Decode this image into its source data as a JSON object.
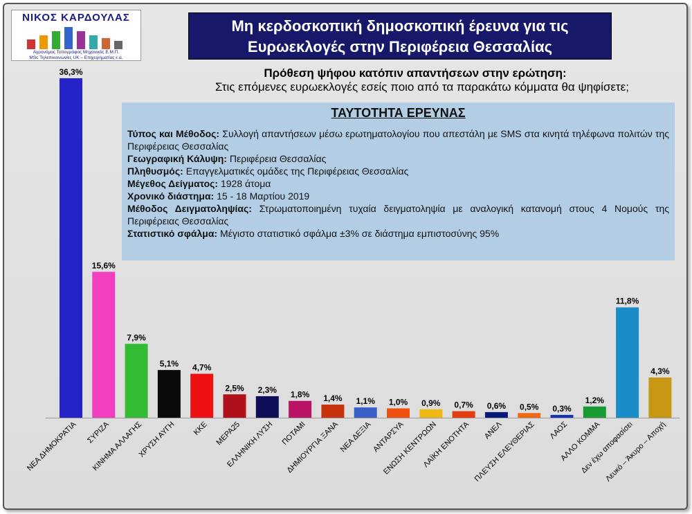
{
  "logo": {
    "name": "ΝΙΚΟΣ ΚΑΡΔΟΥΛΑΣ",
    "line1": "Αγρονόμος Τοπογράφος Μηχανικός Ε.Μ.Π.",
    "line2": "MSc Τηλεπικοινωνίες UK – Επιχειρηματίας ε.α."
  },
  "header": {
    "title_line1": "Μη κερδοσκοπική δημοσκοπική έρευνα για τις",
    "title_line2": "Ευρωεκλογές στην Περιφέρεια Θεσσαλίας"
  },
  "question": {
    "title": "Πρόθεση ψήφου κατόπιν απαντήσεων στην ερώτηση:",
    "text": "Στις επόμενες ευρωεκλογές εσείς ποιο από τα παρακάτω κόμματα θα ψηφίσετε;"
  },
  "info": {
    "heading": "ΤΑΥΤΟΤΗΤΑ ΕΡΕΥΝΑΣ",
    "rows": [
      {
        "label": "Τύπος και Μέθοδος:",
        "value": " Συλλογή απαντήσεων μέσω ερωτηματολογίου που απεστάλη με SMS στα κινητά τηλέφωνα πολιτών της Περιφέρειας Θεσσαλίας"
      },
      {
        "label": "Γεωγραφική Κάλυψη:",
        "value": " Περιφέρεια Θεσσαλίας"
      },
      {
        "label": "Πληθυσμός:",
        "value": " Επαγγελματικές ομάδες της Περιφέρειας Θεσσαλίας"
      },
      {
        "label": "Μέγεθος Δείγματος:",
        "value": "  1928 άτομα"
      },
      {
        "label": "Χρονικό διάστημα:",
        "value": " 15 - 18 Μαρτίου 2019"
      },
      {
        "label": "Μέθοδος Δειγματοληψίας:",
        "value": " Στρωματοποιημένη τυχαία δειγματοληψία με αναλογική κατανομή στους 4 Νομούς της Περιφέρειας Θεσσαλίας"
      },
      {
        "label": "Στατιστικό σφάλμα:",
        "value": " Μέγιστο στατιστικό σφάλμα  ±3% σε διάστημα εμπιστοσύνης 95%"
      }
    ]
  },
  "chart_data": {
    "type": "bar",
    "unit": "%",
    "ylim": [
      0,
      38
    ],
    "grid": false,
    "categories": [
      "ΝΕΑ ΔΗΜΟΚΡΑΤΙΑ",
      "ΣΥΡΙΖΑ",
      "ΚΙΝΗΜΑ ΑΛΛΑΓΗΣ",
      "ΧΡΥΣΗ ΑΥΓΗ",
      "ΚΚΕ",
      "ΜΕΡΑ25",
      "ΕΛΛΗΝΙΚΗ ΛΥΣΗ",
      "ΠΟΤΑΜΙ",
      "ΔΗΜΙΟΥΡΓΙΑ ΞΑΝΑ",
      "ΝΕΑ ΔΕΞΙΑ",
      "ΑΝΤΑΡΣΥΑ",
      "ΕΝΩΣΗ ΚΕΝΤΡΩΩΝ",
      "ΛΑΪΚΗ ΕΝΟΤΗΤΑ",
      "ΑΝΕΛ",
      "ΠΛΕΥΣΗ ΕΛΕΥΘΕΡΙΑΣ",
      "ΛΑΟΣ",
      "ΑΛΛΟ ΚΟΜΜΑ",
      "Δεν έχω αποφασίσει",
      "Λευκό – Άκυρο – Αποχή"
    ],
    "values": [
      36.3,
      15.6,
      7.9,
      5.1,
      4.7,
      2.5,
      2.3,
      1.8,
      1.4,
      1.1,
      1.0,
      0.9,
      0.7,
      0.6,
      0.5,
      0.3,
      1.2,
      11.8,
      4.3
    ],
    "value_labels": [
      "36,3%",
      "15,6%",
      "7,9%",
      "5,1%",
      "4,7%",
      "2,5%",
      "2,3%",
      "1,8%",
      "1,4%",
      "1,1%",
      "1,0%",
      "0,9%",
      "0,7%",
      "0,6%",
      "0,5%",
      "0,3%",
      "1,2%",
      "11,8%",
      "4,3%"
    ],
    "colors": [
      "#2323c8",
      "#f23fbf",
      "#33bb33",
      "#0a0a0a",
      "#ee1111",
      "#b0101a",
      "#0e0e58",
      "#bb1466",
      "#c8320c",
      "#3a5fc8",
      "#f05010",
      "#f0b810",
      "#e23c10",
      "#0a1a7a",
      "#f06a14",
      "#1432b4",
      "#1a9a32",
      "#1a8cc8",
      "#c89814"
    ]
  }
}
